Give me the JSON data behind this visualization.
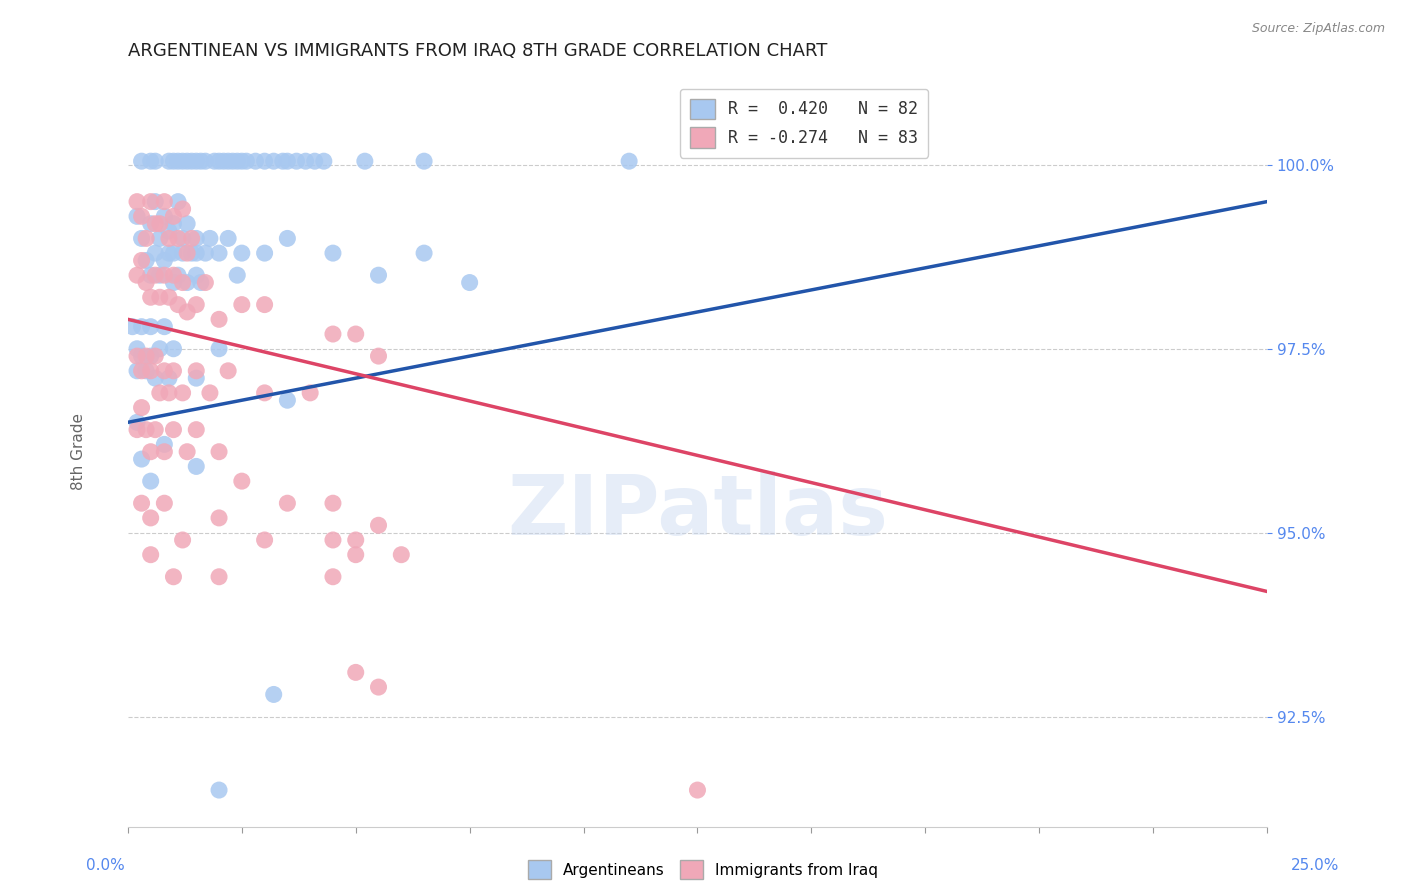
{
  "title": "ARGENTINEAN VS IMMIGRANTS FROM IRAQ 8TH GRADE CORRELATION CHART",
  "source": "Source: ZipAtlas.com",
  "ylabel": "8th Grade",
  "yticks": [
    92.5,
    95.0,
    97.5,
    100.0
  ],
  "xlim": [
    0.0,
    25.0
  ],
  "ylim": [
    91.0,
    101.2
  ],
  "watermark": "ZIPatlas",
  "blue_color": "#A8C8F0",
  "pink_color": "#F0A8B8",
  "line_blue": "#2255AA",
  "line_pink": "#DD4466",
  "blue_scatter": [
    [
      0.3,
      100.05
    ],
    [
      0.5,
      100.05
    ],
    [
      0.6,
      100.05
    ],
    [
      0.9,
      100.05
    ],
    [
      1.0,
      100.05
    ],
    [
      1.1,
      100.05
    ],
    [
      1.2,
      100.05
    ],
    [
      1.3,
      100.05
    ],
    [
      1.4,
      100.05
    ],
    [
      1.5,
      100.05
    ],
    [
      1.6,
      100.05
    ],
    [
      1.7,
      100.05
    ],
    [
      1.9,
      100.05
    ],
    [
      2.0,
      100.05
    ],
    [
      2.1,
      100.05
    ],
    [
      2.2,
      100.05
    ],
    [
      2.3,
      100.05
    ],
    [
      2.4,
      100.05
    ],
    [
      2.5,
      100.05
    ],
    [
      2.6,
      100.05
    ],
    [
      2.8,
      100.05
    ],
    [
      3.0,
      100.05
    ],
    [
      3.2,
      100.05
    ],
    [
      3.4,
      100.05
    ],
    [
      3.5,
      100.05
    ],
    [
      3.7,
      100.05
    ],
    [
      3.9,
      100.05
    ],
    [
      4.1,
      100.05
    ],
    [
      4.3,
      100.05
    ],
    [
      5.2,
      100.05
    ],
    [
      6.5,
      100.05
    ],
    [
      11.0,
      100.05
    ],
    [
      0.2,
      99.3
    ],
    [
      0.3,
      99.0
    ],
    [
      0.4,
      98.7
    ],
    [
      0.5,
      99.2
    ],
    [
      0.5,
      98.5
    ],
    [
      0.6,
      99.5
    ],
    [
      0.6,
      98.8
    ],
    [
      0.7,
      99.0
    ],
    [
      0.7,
      98.5
    ],
    [
      0.8,
      98.7
    ],
    [
      0.8,
      99.3
    ],
    [
      0.9,
      98.8
    ],
    [
      0.9,
      99.1
    ],
    [
      1.0,
      98.8
    ],
    [
      1.0,
      98.4
    ],
    [
      1.0,
      99.2
    ],
    [
      1.1,
      98.5
    ],
    [
      1.1,
      99.5
    ],
    [
      1.2,
      98.8
    ],
    [
      1.2,
      99.0
    ],
    [
      1.3,
      99.2
    ],
    [
      1.3,
      98.4
    ],
    [
      1.4,
      98.8
    ],
    [
      1.5,
      98.5
    ],
    [
      1.5,
      98.8
    ],
    [
      1.5,
      99.0
    ],
    [
      1.6,
      98.4
    ],
    [
      1.7,
      98.8
    ],
    [
      1.8,
      99.0
    ],
    [
      2.0,
      98.8
    ],
    [
      2.2,
      99.0
    ],
    [
      2.4,
      98.5
    ],
    [
      2.5,
      98.8
    ],
    [
      3.0,
      98.8
    ],
    [
      3.5,
      99.0
    ],
    [
      4.5,
      98.8
    ],
    [
      5.5,
      98.5
    ],
    [
      6.5,
      98.8
    ],
    [
      7.5,
      98.4
    ],
    [
      0.1,
      97.8
    ],
    [
      0.2,
      97.5
    ],
    [
      0.2,
      97.2
    ],
    [
      0.3,
      97.8
    ],
    [
      0.3,
      97.4
    ],
    [
      0.4,
      97.2
    ],
    [
      0.5,
      97.8
    ],
    [
      0.5,
      97.4
    ],
    [
      0.6,
      97.1
    ],
    [
      0.7,
      97.5
    ],
    [
      0.8,
      97.8
    ],
    [
      0.9,
      97.1
    ],
    [
      1.0,
      97.5
    ],
    [
      1.5,
      97.1
    ],
    [
      2.0,
      97.5
    ],
    [
      0.2,
      96.5
    ],
    [
      0.3,
      96.0
    ],
    [
      0.5,
      95.7
    ],
    [
      0.8,
      96.2
    ],
    [
      1.5,
      95.9
    ],
    [
      3.5,
      96.8
    ],
    [
      3.2,
      92.8
    ],
    [
      2.0,
      91.5
    ]
  ],
  "pink_scatter": [
    [
      0.2,
      99.5
    ],
    [
      0.3,
      99.3
    ],
    [
      0.4,
      99.0
    ],
    [
      0.5,
      99.5
    ],
    [
      0.7,
      99.2
    ],
    [
      0.8,
      99.5
    ],
    [
      0.9,
      99.0
    ],
    [
      1.0,
      99.3
    ],
    [
      1.1,
      99.0
    ],
    [
      1.2,
      99.4
    ],
    [
      1.3,
      98.8
    ],
    [
      1.4,
      99.0
    ],
    [
      0.2,
      98.5
    ],
    [
      0.3,
      98.7
    ],
    [
      0.4,
      98.4
    ],
    [
      0.5,
      98.2
    ],
    [
      0.6,
      98.5
    ],
    [
      0.6,
      99.2
    ],
    [
      0.7,
      98.2
    ],
    [
      0.8,
      98.5
    ],
    [
      0.9,
      98.2
    ],
    [
      1.0,
      98.5
    ],
    [
      1.1,
      98.1
    ],
    [
      1.2,
      98.4
    ],
    [
      1.3,
      98.0
    ],
    [
      1.5,
      98.1
    ],
    [
      1.7,
      98.4
    ],
    [
      2.0,
      97.9
    ],
    [
      2.5,
      98.1
    ],
    [
      3.0,
      98.1
    ],
    [
      4.5,
      97.7
    ],
    [
      5.0,
      97.7
    ],
    [
      5.5,
      97.4
    ],
    [
      0.2,
      97.4
    ],
    [
      0.3,
      97.2
    ],
    [
      0.4,
      97.4
    ],
    [
      0.5,
      97.2
    ],
    [
      0.6,
      97.4
    ],
    [
      0.7,
      96.9
    ],
    [
      0.8,
      97.2
    ],
    [
      0.9,
      96.9
    ],
    [
      1.0,
      97.2
    ],
    [
      1.2,
      96.9
    ],
    [
      1.5,
      97.2
    ],
    [
      1.8,
      96.9
    ],
    [
      2.2,
      97.2
    ],
    [
      3.0,
      96.9
    ],
    [
      4.0,
      96.9
    ],
    [
      0.2,
      96.4
    ],
    [
      0.3,
      96.7
    ],
    [
      0.4,
      96.4
    ],
    [
      0.5,
      96.1
    ],
    [
      0.6,
      96.4
    ],
    [
      0.8,
      96.1
    ],
    [
      1.0,
      96.4
    ],
    [
      1.3,
      96.1
    ],
    [
      1.5,
      96.4
    ],
    [
      2.0,
      96.1
    ],
    [
      2.5,
      95.7
    ],
    [
      3.5,
      95.4
    ],
    [
      4.5,
      94.9
    ],
    [
      6.0,
      94.7
    ],
    [
      0.3,
      95.4
    ],
    [
      0.5,
      95.2
    ],
    [
      0.8,
      95.4
    ],
    [
      1.2,
      94.9
    ],
    [
      2.0,
      95.2
    ],
    [
      3.0,
      94.9
    ],
    [
      4.5,
      95.4
    ],
    [
      5.0,
      94.9
    ],
    [
      5.5,
      95.1
    ],
    [
      0.5,
      94.7
    ],
    [
      1.0,
      94.4
    ],
    [
      2.0,
      94.4
    ],
    [
      4.5,
      94.4
    ],
    [
      5.0,
      94.7
    ],
    [
      5.0,
      93.1
    ],
    [
      5.5,
      92.9
    ],
    [
      12.5,
      91.5
    ]
  ],
  "blue_line": {
    "x0": 0.0,
    "y0": 96.5,
    "x1": 25.0,
    "y1": 99.5
  },
  "pink_line": {
    "x0": 0.0,
    "y0": 97.9,
    "x1": 25.0,
    "y1": 94.2
  },
  "legend_blue_label": "R =  0.420   N = 82",
  "legend_pink_label": "R = -0.274   N = 83"
}
